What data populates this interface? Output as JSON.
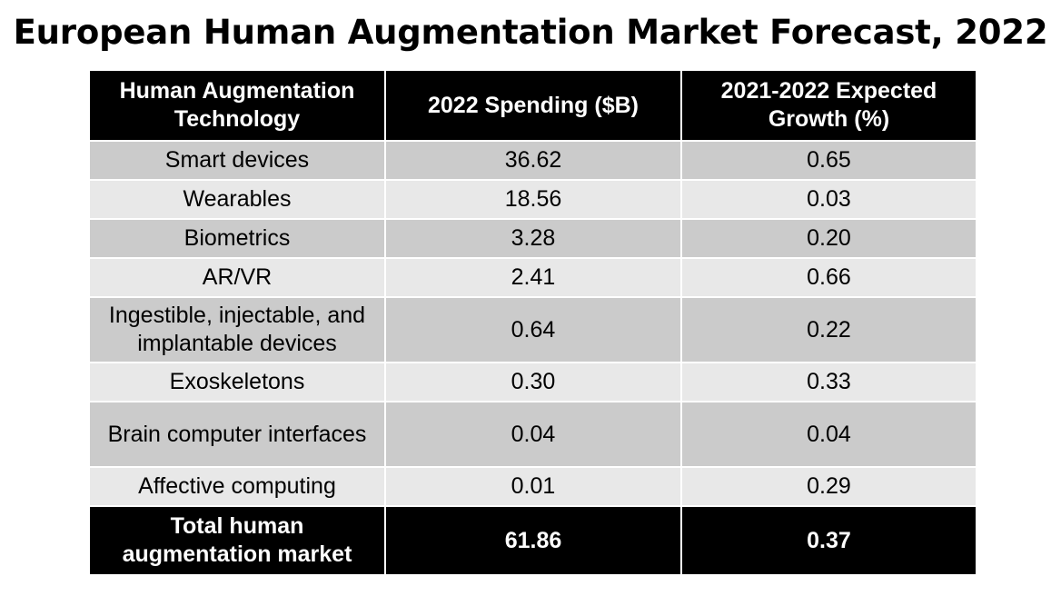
{
  "chart_data": {
    "type": "table",
    "title": "European Human Augmentation Market Forecast, 2022",
    "columns": [
      "Human Augmentation Technology",
      "2022 Spending ($B)",
      "2021-2022 Expected Growth (%)"
    ],
    "rows": [
      {
        "technology": "Smart devices",
        "spending": "36.62",
        "growth": "0.65"
      },
      {
        "technology": "Wearables",
        "spending": "18.56",
        "growth": "0.03"
      },
      {
        "technology": "Biometrics",
        "spending": "3.28",
        "growth": "0.20"
      },
      {
        "technology": "AR/VR",
        "spending": "2.41",
        "growth": "0.66"
      },
      {
        "technology": "Ingestible, injectable, and implantable devices",
        "spending": "0.64",
        "growth": "0.22"
      },
      {
        "technology": "Exoskeletons",
        "spending": "0.30",
        "growth": "0.33"
      },
      {
        "technology": "Brain computer interfaces",
        "spending": "0.04",
        "growth": "0.04"
      },
      {
        "technology": "Affective computing",
        "spending": "0.01",
        "growth": "0.29"
      }
    ],
    "total": {
      "technology": "Total human augmentation market",
      "spending": "61.86",
      "growth": "0.37"
    }
  },
  "colors": {
    "header_bg": "#000000",
    "header_text": "#ffffff",
    "row_dark": "#cbcbcb",
    "row_light": "#e8e8e8"
  }
}
